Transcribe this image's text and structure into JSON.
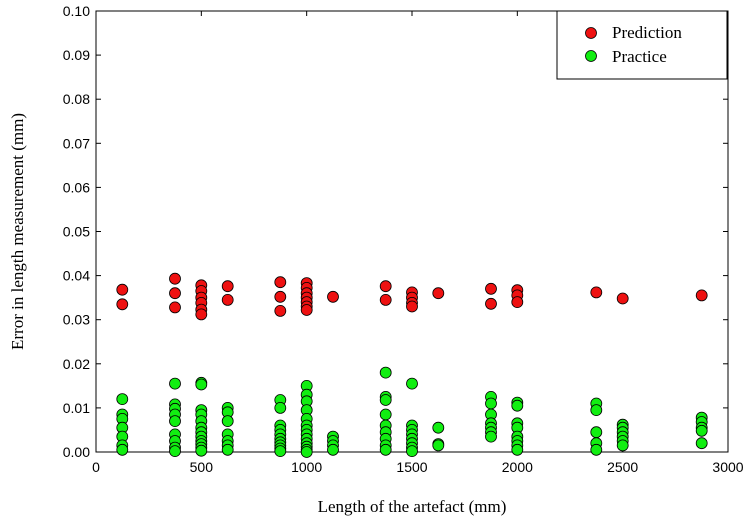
{
  "chart_data": {
    "type": "scatter",
    "title": "",
    "xlabel": "Length of the artefact (mm)",
    "ylabel": "Error in length measurement (mm)",
    "xlim": [
      0,
      3000
    ],
    "ylim": [
      0,
      0.1
    ],
    "xticks": [
      "0",
      "500",
      "1000",
      "1500",
      "2000",
      "2500",
      "3000"
    ],
    "yticks": [
      "0.00",
      "0.01",
      "0.02",
      "0.03",
      "0.04",
      "0.05",
      "0.06",
      "0.07",
      "0.08",
      "0.09",
      "0.10"
    ],
    "grid": false,
    "legend_position": "top-right",
    "series": [
      {
        "name": "Prediction",
        "color": "#ee1111",
        "points": [
          [
            125,
            0.0368
          ],
          [
            125,
            0.0335
          ],
          [
            375,
            0.0393
          ],
          [
            375,
            0.036
          ],
          [
            375,
            0.0328
          ],
          [
            500,
            0.0378
          ],
          [
            500,
            0.0365
          ],
          [
            500,
            0.035
          ],
          [
            500,
            0.0338
          ],
          [
            500,
            0.0323
          ],
          [
            500,
            0.0312
          ],
          [
            625,
            0.0376
          ],
          [
            625,
            0.0345
          ],
          [
            875,
            0.0385
          ],
          [
            875,
            0.0352
          ],
          [
            875,
            0.032
          ],
          [
            1000,
            0.0383
          ],
          [
            1000,
            0.0372
          ],
          [
            1000,
            0.036
          ],
          [
            1000,
            0.035
          ],
          [
            1000,
            0.034
          ],
          [
            1000,
            0.033
          ],
          [
            1000,
            0.0322
          ],
          [
            1125,
            0.0352
          ],
          [
            1375,
            0.0376
          ],
          [
            1375,
            0.0345
          ],
          [
            1500,
            0.0362
          ],
          [
            1500,
            0.035
          ],
          [
            1500,
            0.0338
          ],
          [
            1500,
            0.033
          ],
          [
            1625,
            0.036
          ],
          [
            1875,
            0.037
          ],
          [
            1875,
            0.0336
          ],
          [
            2000,
            0.0367
          ],
          [
            2000,
            0.0355
          ],
          [
            2000,
            0.034
          ],
          [
            2375,
            0.0362
          ],
          [
            2500,
            0.0348
          ],
          [
            2875,
            0.0355
          ]
        ]
      },
      {
        "name": "Practice",
        "color": "#11ee11",
        "points": [
          [
            125,
            0.012
          ],
          [
            125,
            0.0085
          ],
          [
            125,
            0.0075
          ],
          [
            125,
            0.0055
          ],
          [
            125,
            0.0035
          ],
          [
            125,
            0.0015
          ],
          [
            125,
            0.0005
          ],
          [
            375,
            0.0155
          ],
          [
            375,
            0.0108
          ],
          [
            375,
            0.0098
          ],
          [
            375,
            0.0085
          ],
          [
            375,
            0.007
          ],
          [
            375,
            0.004
          ],
          [
            375,
            0.0025
          ],
          [
            375,
            0.001
          ],
          [
            375,
            0.0002
          ],
          [
            500,
            0.0157
          ],
          [
            500,
            0.0153
          ],
          [
            500,
            0.0095
          ],
          [
            500,
            0.0085
          ],
          [
            500,
            0.007
          ],
          [
            500,
            0.0055
          ],
          [
            500,
            0.0045
          ],
          [
            500,
            0.0035
          ],
          [
            500,
            0.0025
          ],
          [
            500,
            0.0018
          ],
          [
            500,
            0.001
          ],
          [
            500,
            0.0003
          ],
          [
            625,
            0.01
          ],
          [
            625,
            0.009
          ],
          [
            625,
            0.007
          ],
          [
            625,
            0.004
          ],
          [
            625,
            0.0025
          ],
          [
            625,
            0.0015
          ],
          [
            625,
            0.0005
          ],
          [
            875,
            0.0118
          ],
          [
            875,
            0.01
          ],
          [
            875,
            0.006
          ],
          [
            875,
            0.005
          ],
          [
            875,
            0.004
          ],
          [
            875,
            0.003
          ],
          [
            875,
            0.0022
          ],
          [
            875,
            0.0015
          ],
          [
            875,
            0.0008
          ],
          [
            875,
            0.0002
          ],
          [
            1000,
            0.015
          ],
          [
            1000,
            0.013
          ],
          [
            1000,
            0.0115
          ],
          [
            1000,
            0.0095
          ],
          [
            1000,
            0.0075
          ],
          [
            1000,
            0.006
          ],
          [
            1000,
            0.005
          ],
          [
            1000,
            0.004
          ],
          [
            1000,
            0.003
          ],
          [
            1000,
            0.002
          ],
          [
            1000,
            0.0012
          ],
          [
            1000,
            0.0005
          ],
          [
            1000,
            0.0
          ],
          [
            1125,
            0.0035
          ],
          [
            1125,
            0.0025
          ],
          [
            1125,
            0.0015
          ],
          [
            1125,
            0.0005
          ],
          [
            1375,
            0.018
          ],
          [
            1375,
            0.0125
          ],
          [
            1375,
            0.0118
          ],
          [
            1375,
            0.0085
          ],
          [
            1375,
            0.006
          ],
          [
            1375,
            0.0045
          ],
          [
            1375,
            0.003
          ],
          [
            1375,
            0.0015
          ],
          [
            1375,
            0.0005
          ],
          [
            1500,
            0.0155
          ],
          [
            1500,
            0.006
          ],
          [
            1500,
            0.005
          ],
          [
            1500,
            0.004
          ],
          [
            1500,
            0.003
          ],
          [
            1500,
            0.002
          ],
          [
            1500,
            0.001
          ],
          [
            1500,
            0.0002
          ],
          [
            1625,
            0.0055
          ],
          [
            1625,
            0.0018
          ],
          [
            1625,
            0.0015
          ],
          [
            1875,
            0.0125
          ],
          [
            1875,
            0.011
          ],
          [
            1875,
            0.0085
          ],
          [
            1875,
            0.0065
          ],
          [
            1875,
            0.0055
          ],
          [
            1875,
            0.0045
          ],
          [
            1875,
            0.0035
          ],
          [
            2000,
            0.0112
          ],
          [
            2000,
            0.0105
          ],
          [
            2000,
            0.0065
          ],
          [
            2000,
            0.0055
          ],
          [
            2000,
            0.0035
          ],
          [
            2000,
            0.0025
          ],
          [
            2000,
            0.0015
          ],
          [
            2000,
            0.0005
          ],
          [
            2375,
            0.011
          ],
          [
            2375,
            0.0095
          ],
          [
            2375,
            0.0045
          ],
          [
            2375,
            0.002
          ],
          [
            2375,
            0.0005
          ],
          [
            2500,
            0.0062
          ],
          [
            2500,
            0.0055
          ],
          [
            2500,
            0.0045
          ],
          [
            2500,
            0.0035
          ],
          [
            2500,
            0.0025
          ],
          [
            2500,
            0.0015
          ],
          [
            2875,
            0.0078
          ],
          [
            2875,
            0.0068
          ],
          [
            2875,
            0.0055
          ],
          [
            2875,
            0.0048
          ],
          [
            2875,
            0.002
          ]
        ]
      }
    ]
  }
}
